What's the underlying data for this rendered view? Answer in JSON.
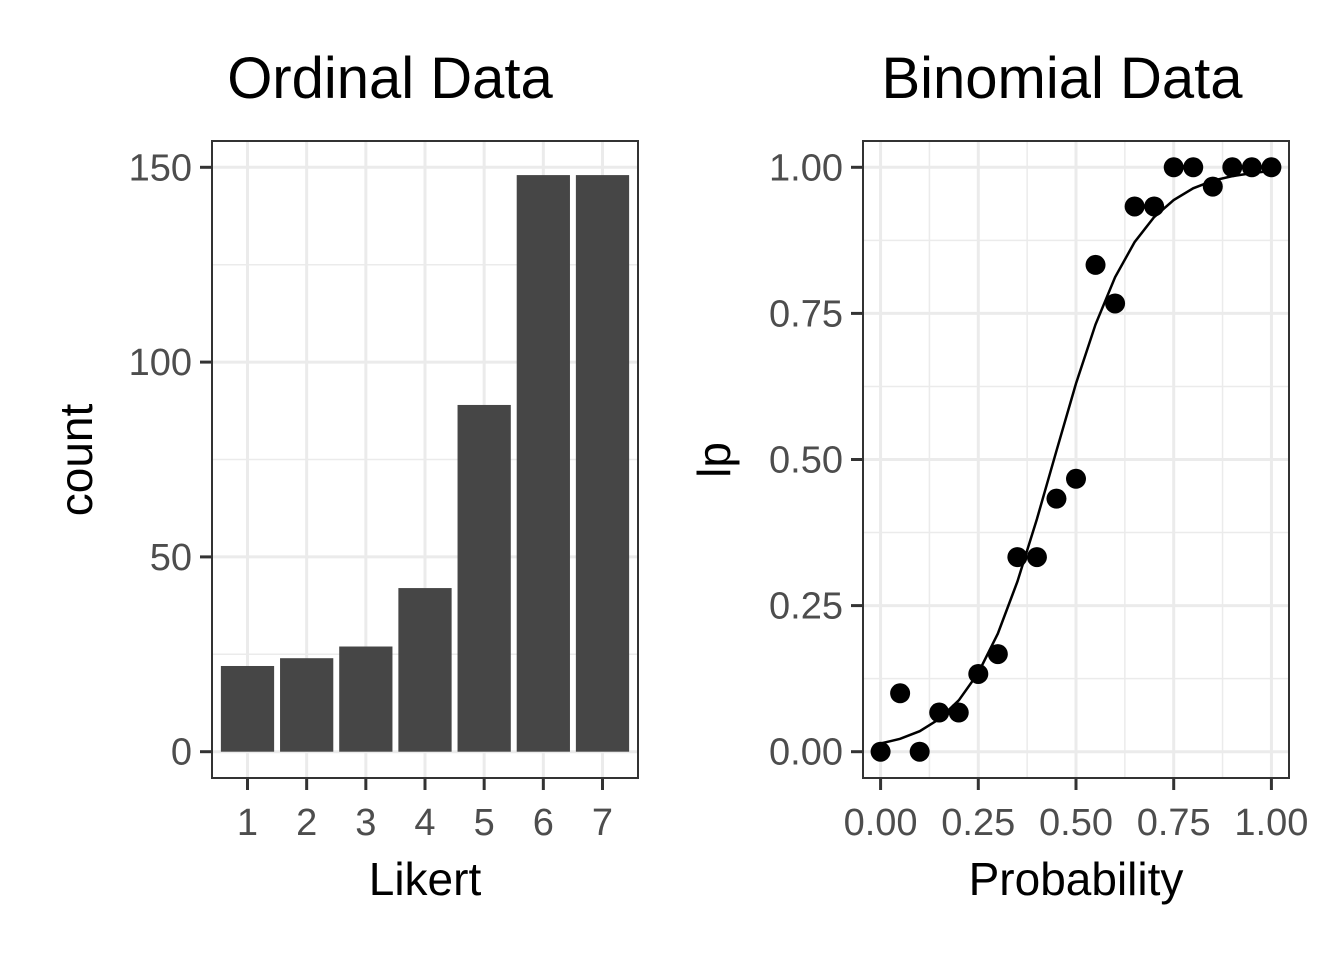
{
  "chart_data": [
    {
      "type": "bar",
      "title": "Ordinal Data",
      "xlabel": "Likert",
      "ylabel": "count",
      "categories": [
        "1",
        "2",
        "3",
        "4",
        "5",
        "6",
        "7"
      ],
      "values": [
        22,
        24,
        27,
        42,
        89,
        148,
        148
      ],
      "ylim": [
        0,
        150
      ],
      "yticks": [
        0,
        50,
        100,
        150
      ],
      "grid": true,
      "bar_color": "#464646"
    },
    {
      "type": "scatter",
      "title": "Binomial Data",
      "xlabel": "Probability",
      "ylabel": "lp",
      "xlim": [
        0,
        1
      ],
      "ylim": [
        0,
        1
      ],
      "xticks": [
        "0.00",
        "0.25",
        "0.50",
        "0.75",
        "1.00"
      ],
      "yticks": [
        "0.00",
        "0.25",
        "0.50",
        "0.75",
        "1.00"
      ],
      "grid": true,
      "point_color": "#000000",
      "points": [
        {
          "x": 0.0,
          "y": 0.0
        },
        {
          "x": 0.05,
          "y": 0.1
        },
        {
          "x": 0.1,
          "y": 0.0
        },
        {
          "x": 0.15,
          "y": 0.067
        },
        {
          "x": 0.2,
          "y": 0.067
        },
        {
          "x": 0.25,
          "y": 0.133
        },
        {
          "x": 0.3,
          "y": 0.167
        },
        {
          "x": 0.35,
          "y": 0.333
        },
        {
          "x": 0.4,
          "y": 0.333
        },
        {
          "x": 0.45,
          "y": 0.433
        },
        {
          "x": 0.5,
          "y": 0.467
        },
        {
          "x": 0.55,
          "y": 0.833
        },
        {
          "x": 0.6,
          "y": 0.767
        },
        {
          "x": 0.65,
          "y": 0.933
        },
        {
          "x": 0.7,
          "y": 0.933
        },
        {
          "x": 0.75,
          "y": 1.0
        },
        {
          "x": 0.8,
          "y": 1.0
        },
        {
          "x": 0.85,
          "y": 0.967
        },
        {
          "x": 0.9,
          "y": 1.0
        },
        {
          "x": 0.95,
          "y": 1.0
        },
        {
          "x": 1.0,
          "y": 1.0
        }
      ],
      "fit_curve": {
        "type": "logistic",
        "x": [
          0.0,
          0.05,
          0.1,
          0.15,
          0.2,
          0.25,
          0.3,
          0.35,
          0.4,
          0.45,
          0.5,
          0.55,
          0.6,
          0.65,
          0.7,
          0.75,
          0.8,
          0.85,
          0.9,
          0.95,
          1.0
        ],
        "y": [
          0.014,
          0.022,
          0.035,
          0.056,
          0.088,
          0.135,
          0.202,
          0.291,
          0.398,
          0.515,
          0.63,
          0.731,
          0.812,
          0.872,
          0.915,
          0.944,
          0.964,
          0.977,
          0.985,
          0.99,
          0.994
        ],
        "color": "#000000"
      }
    }
  ]
}
